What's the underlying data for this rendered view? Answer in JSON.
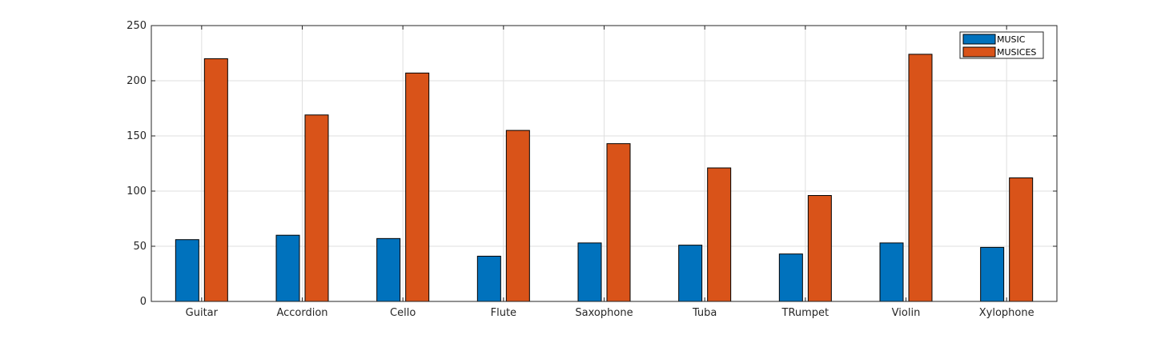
{
  "chart_data": {
    "type": "bar",
    "title": "",
    "xlabel": "",
    "ylabel": "",
    "categories": [
      "Guitar",
      "Accordion",
      "Cello",
      "Flute",
      "Saxophone",
      "Tuba",
      "TRumpet",
      "Violin",
      "Xylophone"
    ],
    "series": [
      {
        "name": "MUSIC",
        "color": "#0072BD",
        "values": [
          56,
          60,
          57,
          41,
          53,
          51,
          43,
          53,
          49
        ]
      },
      {
        "name": "MUSICES",
        "color": "#D95319",
        "values": [
          220,
          169,
          207,
          155,
          143,
          121,
          96,
          224,
          112
        ]
      }
    ],
    "ylim": [
      0,
      250
    ],
    "yticks": [
      0,
      50,
      100,
      150,
      200,
      250
    ],
    "ytick_labels": [
      "0",
      "50",
      "100",
      "150",
      "200",
      "250"
    ],
    "grid": true,
    "legend_position": "top-right",
    "colors": {
      "grid": "#dfdfdf",
      "axis": "#262626",
      "bar_edge": "#000000"
    }
  }
}
